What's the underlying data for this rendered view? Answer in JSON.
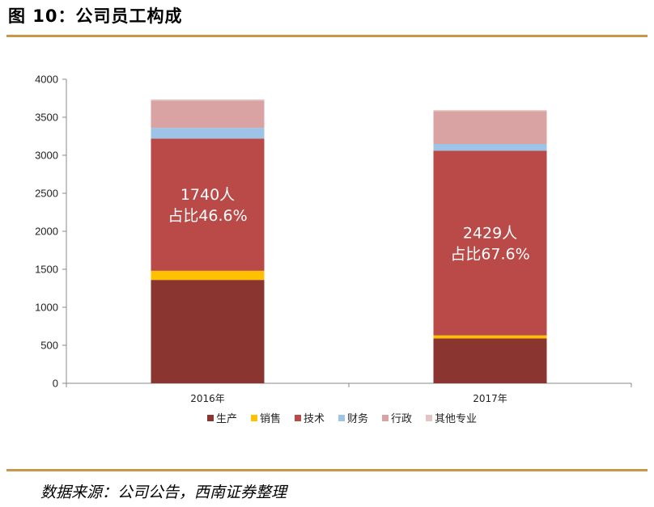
{
  "figure": {
    "title": "图 10：公司员工构成",
    "source": "数据来源：公司公告，西南证券整理"
  },
  "chart_data": {
    "type": "bar",
    "stacked": true,
    "categories": [
      "2016年",
      "2017年"
    ],
    "ylim": [
      0,
      4000
    ],
    "yticks": [
      0,
      500,
      1000,
      1500,
      2000,
      2500,
      3000,
      3500,
      4000
    ],
    "grid": false,
    "legend_position": "bottom",
    "series": [
      {
        "name": "生产",
        "color": "#8b3530",
        "values": [
          1360,
          590
        ]
      },
      {
        "name": "销售",
        "color": "#ffc000",
        "values": [
          120,
          40
        ]
      },
      {
        "name": "技术",
        "color": "#b94a48",
        "values": [
          1740,
          2429
        ]
      },
      {
        "name": "财务",
        "color": "#9dc3e6",
        "values": [
          140,
          90
        ]
      },
      {
        "name": "行政",
        "color": "#d9a3a3",
        "values": [
          360,
          430
        ]
      },
      {
        "name": "其他专业",
        "color": "#e6c3c3",
        "values": [
          15,
          15
        ]
      }
    ],
    "annotations": [
      {
        "category": "2016年",
        "lines": [
          "1740人",
          "占比46.6%"
        ]
      },
      {
        "category": "2017年",
        "lines": [
          "2429人",
          "占比67.6%"
        ]
      }
    ]
  }
}
